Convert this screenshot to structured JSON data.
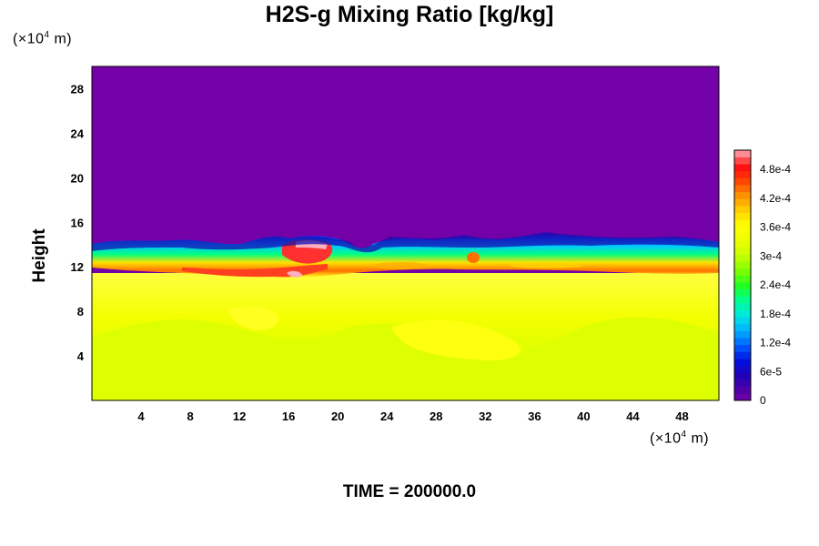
{
  "chart_data": {
    "type": "heatmap",
    "title": "H2S-g Mixing Ratio [kg/kg]",
    "ylabel": "Height",
    "xlabel": "",
    "x_unit": "(×10⁴ m)",
    "y_unit": "(×10⁴ m)",
    "xlim": [
      0,
      51
    ],
    "ylim": [
      0,
      30
    ],
    "x_ticks": [
      "4",
      "8",
      "12",
      "16",
      "20",
      "24",
      "28",
      "32",
      "36",
      "40",
      "44",
      "48"
    ],
    "y_ticks": [
      "4",
      "8",
      "12",
      "16",
      "20",
      "24",
      "28"
    ],
    "colorbar": {
      "min": 0,
      "max": 0.00052,
      "labels": [
        "0",
        "6e-5",
        "1.2e-4",
        "1.8e-4",
        "2.4e-4",
        "3e-4",
        "3.6e-4",
        "4.2e-4",
        "4.8e-4"
      ],
      "label_values": [
        0,
        6e-05,
        0.00012,
        0.00018,
        0.00024,
        0.0003,
        0.00036,
        0.00042,
        0.00048
      ]
    },
    "footer": "TIME = 200000.0"
  },
  "colors": {
    "low": "#7400a8",
    "high_band": "#ffff00",
    "surface": "#ddff00",
    "peak": "#ff3030"
  }
}
